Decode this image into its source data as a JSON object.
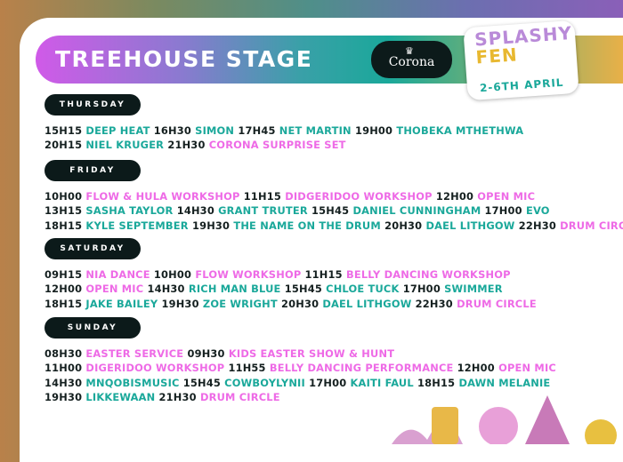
{
  "header": {
    "title": "TREEHOUSE STAGE",
    "sponsor": "Corona",
    "festival_logo": "SPLASHY FEN",
    "festival_dates": "2-6TH APRIL"
  },
  "colors": {
    "act_teal": "#1aa89a",
    "act_pink": "#ee6ae6",
    "pill_bg": "#0c1a1a"
  },
  "days": [
    {
      "label": "THURSDAY",
      "lines": [
        [
          {
            "time": "15H15",
            "act": "DEEP HEAT",
            "color": "teal"
          },
          {
            "time": "16H30",
            "act": "SIMON",
            "color": "teal"
          },
          {
            "time": "17H45",
            "act": "NET MARTIN",
            "color": "teal"
          },
          {
            "time": "19H00",
            "act": "THOBEKA MTHETHWA",
            "color": "teal"
          }
        ],
        [
          {
            "time": "20H15",
            "act": "NIEL KRUGER",
            "color": "teal"
          },
          {
            "time": "21H30",
            "act": "CORONA SURPRISE SET",
            "color": "pink"
          }
        ]
      ]
    },
    {
      "label": "FRIDAY",
      "lines": [
        [
          {
            "time": "10H00",
            "act": "FLOW & HULA WORKSHOP",
            "color": "pink"
          },
          {
            "time": "11H15",
            "act": "DIDGERIDOO WORKSHOP",
            "color": "pink"
          },
          {
            "time": "12H00",
            "act": "OPEN MIC",
            "color": "pink"
          }
        ],
        [
          {
            "time": "13H15",
            "act": "SASHA TAYLOR",
            "color": "teal"
          },
          {
            "time": "14H30",
            "act": "GRANT TRUTER",
            "color": "teal"
          },
          {
            "time": "15H45",
            "act": "DANIEL CUNNINGHAM",
            "color": "teal"
          },
          {
            "time": "17H00",
            "act": "EVO",
            "color": "teal"
          }
        ],
        [
          {
            "time": "18H15",
            "act": "KYLE SEPTEMBER",
            "color": "teal"
          },
          {
            "time": "19H30",
            "act": "THE NAME ON THE DRUM",
            "color": "teal"
          },
          {
            "time": "20H30",
            "act": "DAEL LITHGOW",
            "color": "teal"
          },
          {
            "time": "22H30",
            "act": "DRUM CIRCLE",
            "color": "pink"
          }
        ]
      ]
    },
    {
      "label": "SATURDAY",
      "lines": [
        [
          {
            "time": "09H15",
            "act": "NIA DANCE",
            "color": "pink"
          },
          {
            "time": "10H00",
            "act": "FLOW WORKSHOP",
            "color": "pink"
          },
          {
            "time": "11H15",
            "act": "BELLY DANCING WORKSHOP",
            "color": "pink"
          }
        ],
        [
          {
            "time": "12H00",
            "act": "OPEN MIC",
            "color": "pink"
          },
          {
            "time": "14H30",
            "act": "RICH MAN BLUE",
            "color": "teal"
          },
          {
            "time": "15H45",
            "act": "CHLOE TUCK",
            "color": "teal"
          },
          {
            "time": "17H00",
            "act": "SWIMMER",
            "color": "teal"
          }
        ],
        [
          {
            "time": "18H15",
            "act": "JAKE BAILEY",
            "color": "teal"
          },
          {
            "time": "19H30",
            "act": "ZOE WRIGHT",
            "color": "teal"
          },
          {
            "time": "20H30",
            "act": "DAEL LITHGOW",
            "color": "teal"
          },
          {
            "time": "22H30",
            "act": "DRUM CIRCLE",
            "color": "pink"
          }
        ]
      ]
    },
    {
      "label": "SUNDAY",
      "lines": [
        [
          {
            "time": "08H30",
            "act": "EASTER SERVICE",
            "color": "pink"
          },
          {
            "time": "09H30",
            "act": "KIDS EASTER SHOW & HUNT",
            "color": "pink"
          }
        ],
        [
          {
            "time": "11H00",
            "act": "DIGERIDOO WORKSHOP",
            "color": "pink"
          },
          {
            "time": "11H55",
            "act": "BELLY DANCING PERFORMANCE",
            "color": "pink"
          },
          {
            "time": "12H00",
            "act": "OPEN MIC",
            "color": "pink"
          }
        ],
        [
          {
            "time": "14H30",
            "act": "MNQOBISMUSIC",
            "color": "teal"
          },
          {
            "time": "15H45",
            "act": "COWBOYLYNII",
            "color": "teal"
          },
          {
            "time": "17H00",
            "act": "KAITI FAUL",
            "color": "teal"
          },
          {
            "time": "18H15",
            "act": "DAWN MELANIE",
            "color": "teal"
          }
        ],
        [
          {
            "time": "19H30",
            "act": "LIKKEWAAN",
            "color": "teal"
          },
          {
            "time": "21H30",
            "act": "DRUM CIRCLE",
            "color": "pink"
          }
        ]
      ]
    }
  ]
}
